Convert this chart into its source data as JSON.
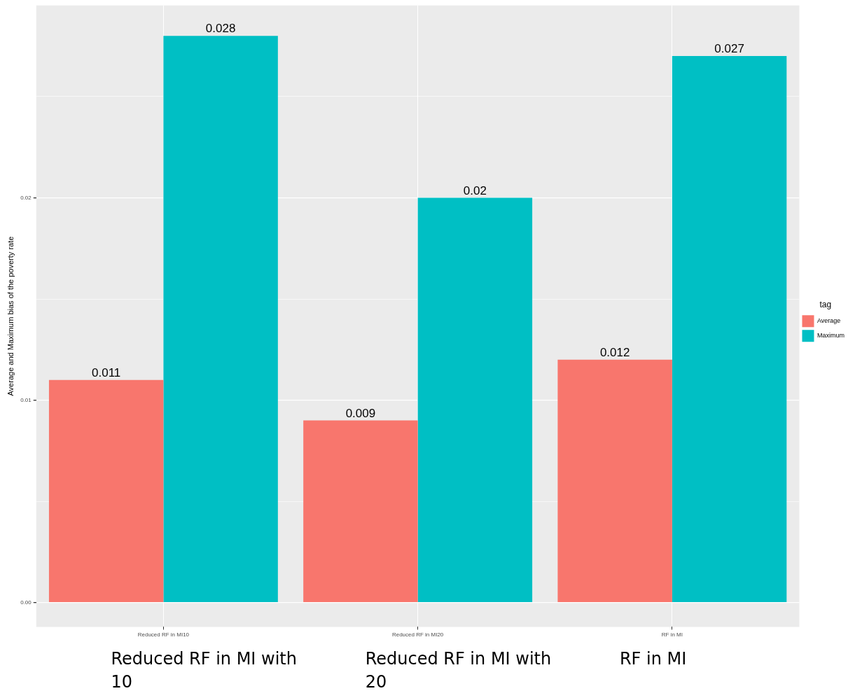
{
  "chart_data": {
    "type": "bar",
    "ylabel": "Average and Maximum bias of the poverty rate",
    "legend_title": "tag",
    "categories": [
      "Reduced RF in MI10",
      "Reduced RF in MI20",
      "RF in MI"
    ],
    "series": [
      {
        "name": "Average",
        "color": "#f8766d",
        "values": [
          0.011,
          0.009,
          0.012
        ]
      },
      {
        "name": "Maximum",
        "color": "#00bfc4",
        "values": [
          0.028,
          0.02,
          0.027
        ]
      }
    ],
    "ylim": [
      -0.0012,
      0.0295
    ],
    "yticks": [
      {
        "value": 0,
        "label": "0.00"
      },
      {
        "value": 0.005,
        "label": null
      },
      {
        "value": 0.01,
        "label": "0.01"
      },
      {
        "value": 0.015,
        "label": null
      },
      {
        "value": 0.02,
        "label": "0.02"
      },
      {
        "value": 0.025,
        "label": null
      }
    ],
    "grid": true,
    "legend": "right",
    "data_labels": true,
    "annotations": [
      "Reduced RF in MI with 10",
      "Reduced RF in MI with 20",
      "RF in MI"
    ]
  }
}
